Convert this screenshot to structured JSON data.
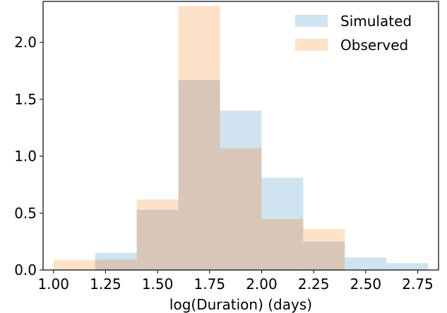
{
  "chart_data": {
    "type": "bar",
    "title": "",
    "xlabel": "log(Duration) (days)",
    "ylabel": "",
    "xlim": [
      0.95,
      2.85
    ],
    "ylim": [
      0,
      2.36
    ],
    "x_ticks": [
      "1.00",
      "1.25",
      "1.50",
      "1.75",
      "2.00",
      "2.25",
      "2.50",
      "2.75"
    ],
    "y_ticks": [
      "0.0",
      "0.5",
      "1.0",
      "1.5",
      "2.0"
    ],
    "bin_edges": [
      1.0,
      1.2,
      1.4,
      1.6,
      1.8,
      2.0,
      2.2,
      2.4,
      2.6,
      2.8
    ],
    "series": [
      {
        "name": "Simulated",
        "color": "#cfe3f0",
        "values": [
          0.0,
          0.15,
          0.53,
          1.67,
          1.4,
          0.81,
          0.25,
          0.11,
          0.06
        ]
      },
      {
        "name": "Observed",
        "color": "#fde1c9",
        "values": [
          0.09,
          0.09,
          0.62,
          2.32,
          1.07,
          0.45,
          0.36,
          0.0,
          0.0
        ]
      }
    ],
    "overlap_color": "#d8c7b8",
    "legend_position": "upper right",
    "grid": false
  }
}
